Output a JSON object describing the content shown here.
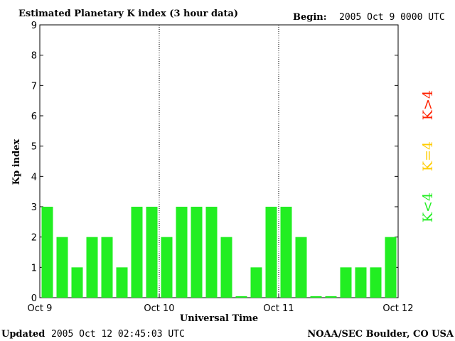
{
  "header": {
    "title": "Estimated Planetary K index (3 hour data)",
    "begin_label": "Begin:",
    "begin_value": "2005 Oct 9 0000 UTC"
  },
  "footer": {
    "updated_label": "Updated",
    "updated_value": "2005 Oct 12 02:45:03 UTC",
    "source": "NOAA/SEC Boulder, CO USA"
  },
  "legend": {
    "high": {
      "label": "K>4",
      "color": "#ff2200"
    },
    "equal": {
      "label": "K=4",
      "color": "#ffcc00"
    },
    "low": {
      "label": "K<4",
      "color": "#22ee22"
    }
  },
  "chart_data": {
    "type": "bar",
    "title": "Estimated Planetary K index (3 hour data)",
    "xlabel": "Universal Time",
    "ylabel": "Kp index",
    "ylim": [
      0,
      9
    ],
    "yticks": [
      "0",
      "1",
      "2",
      "3",
      "4",
      "5",
      "6",
      "7",
      "8",
      "9"
    ],
    "x_tick_labels": [
      "Oct 9",
      "Oct 10",
      "Oct 11",
      "Oct 12"
    ],
    "day_dividers": [
      "Oct 10",
      "Oct 11"
    ],
    "interval": "3 hour",
    "values": [
      3,
      2,
      1,
      2,
      2,
      1,
      3,
      3,
      2,
      3,
      3,
      3,
      2,
      0.05,
      1,
      3,
      3,
      2,
      0.05,
      0.05,
      1,
      1,
      1,
      2
    ],
    "bar_color": "#22ee22",
    "grid": false
  }
}
